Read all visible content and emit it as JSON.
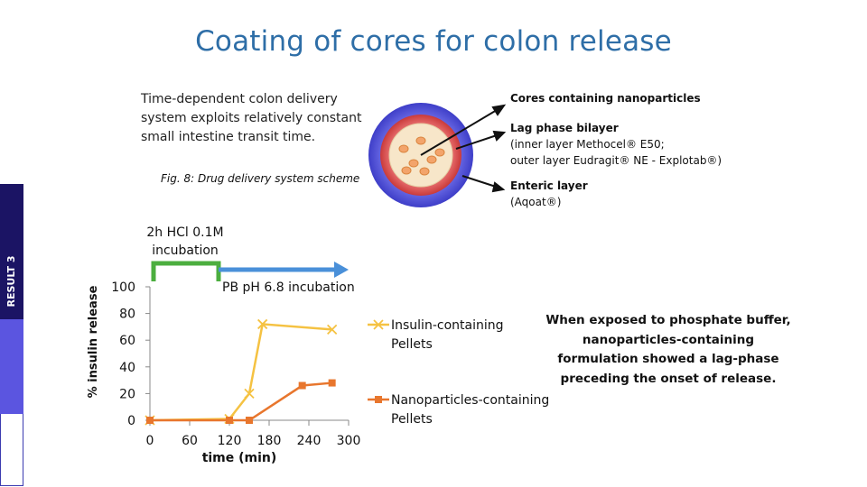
{
  "slide": {
    "title": "Coating of cores for colon release",
    "section_label": "RESULT 3",
    "description": "Time-dependent colon delivery system exploits relatively constant small intestine transit time.",
    "figure_caption": "Fig. 8: Drug delivery system scheme",
    "layers": {
      "cores": "Cores containing nanoparticles",
      "lag_title": "Lag phase bilayer",
      "lag_line1": "(inner layer Methocel® E50;",
      "lag_line2": "outer layer Eudragit® NE - Explotab®)",
      "enteric_title": "Enteric layer",
      "enteric_sub": "(Aqoat®)"
    },
    "hcl_incubation": "2h HCl 0.1M incubation",
    "ph_incubation": "PB pH 6.8 incubation",
    "conclusion_plain": "When exposed to phosphate buffer, nanoparticles-containing formulation showed a ",
    "conclusion_bold": "lag-phase preceding the onset of release."
  },
  "chart_data": {
    "type": "line",
    "title": "",
    "xlabel": "time (min)",
    "ylabel": "% insulin release",
    "x_ticks": [
      0,
      60,
      120,
      180,
      240,
      300
    ],
    "y_ticks": [
      0,
      20,
      40,
      60,
      80,
      100
    ],
    "xlim": [
      0,
      300
    ],
    "ylim": [
      0,
      100
    ],
    "grid": false,
    "legend_position": "right",
    "series": [
      {
        "name": "Insulin-containing Pellets",
        "color": "#f5c242",
        "marker": "x",
        "x": [
          0,
          120,
          150,
          170,
          275
        ],
        "y": [
          0,
          1,
          20,
          72,
          68
        ]
      },
      {
        "name": "Nanoparticles-containing Pellets",
        "color": "#e8762d",
        "marker": "square",
        "x": [
          0,
          120,
          150,
          230,
          275
        ],
        "y": [
          0,
          0,
          0,
          26,
          28
        ]
      }
    ]
  }
}
